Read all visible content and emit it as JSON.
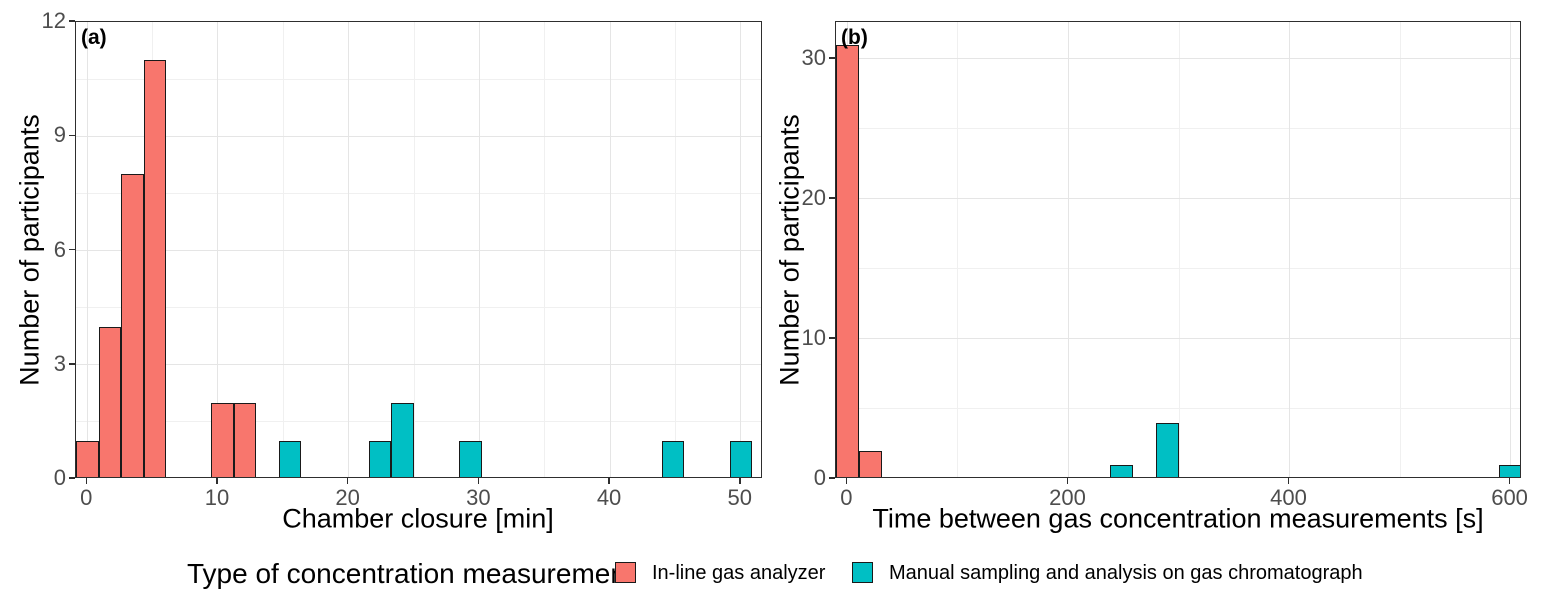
{
  "figure": {
    "background": "#FFFFFF",
    "panel_border_color": "#2E2E2E",
    "bar_outline_color": "#1A1A1A",
    "grid_major_color": "#E5E5E5",
    "grid_minor_color": "#F0F0F0",
    "tick_label_color": "#4D4D4D",
    "text_color": "#000000"
  },
  "legend": {
    "title": "Type of concentration measurement",
    "items": [
      {
        "label": "In-line gas analyzer",
        "color": "#F8766D"
      },
      {
        "label": "Manual sampling and analysis on gas chromatograph",
        "color": "#00BFC4"
      }
    ]
  },
  "chart_data": [
    {
      "type": "bar",
      "tag": "(a)",
      "xlabel": "Chamber closure [min]",
      "ylabel": "Number of participants",
      "xlim": [
        -0.862,
        51.7
      ],
      "ylim": [
        0,
        12
      ],
      "xticks": [
        0,
        10,
        20,
        30,
        40,
        50
      ],
      "xticks_minor": [
        5,
        15,
        25,
        35,
        45
      ],
      "yticks": [
        0,
        3,
        6,
        9,
        12
      ],
      "yticks_minor": [
        1.5,
        4.5,
        7.5,
        10.5
      ],
      "binwidth": 1.7241,
      "grid": true,
      "legend_position": "bottom",
      "series": [
        {
          "name": "In-line gas analyzer",
          "color": "#F8766D",
          "bars": [
            {
              "x": 0,
              "count": 1
            },
            {
              "x": 1.724,
              "count": 4
            },
            {
              "x": 3.448,
              "count": 8
            },
            {
              "x": 5.172,
              "count": 11
            },
            {
              "x": 10.345,
              "count": 2
            },
            {
              "x": 12.069,
              "count": 2
            }
          ]
        },
        {
          "name": "Manual sampling and analysis on gas chromatograph",
          "color": "#00BFC4",
          "bars": [
            {
              "x": 15.517,
              "count": 1
            },
            {
              "x": 22.414,
              "count": 1
            },
            {
              "x": 24.138,
              "count": 2
            },
            {
              "x": 29.31,
              "count": 1
            },
            {
              "x": 44.828,
              "count": 1
            },
            {
              "x": 50.0,
              "count": 1
            }
          ]
        }
      ]
    },
    {
      "type": "bar",
      "tag": "(b)",
      "xlabel": "Time between gas concentration measurements [s]",
      "ylabel": "Number of participants",
      "xlim": [
        -10.345,
        610.345
      ],
      "ylim": [
        0,
        32.64
      ],
      "xticks": [
        0,
        200,
        400,
        600
      ],
      "xticks_minor": [
        100,
        300,
        500
      ],
      "yticks": [
        0,
        10,
        20,
        30
      ],
      "yticks_minor": [
        5,
        15,
        25
      ],
      "binwidth": 20.69,
      "grid": true,
      "legend_position": "bottom",
      "series": [
        {
          "name": "In-line gas analyzer",
          "color": "#F8766D",
          "bars": [
            {
              "x": 0,
              "count": 31
            },
            {
              "x": 20.69,
              "count": 2
            }
          ]
        },
        {
          "name": "Manual sampling and analysis on gas chromatograph",
          "color": "#00BFC4",
          "bars": [
            {
              "x": 248.28,
              "count": 1
            },
            {
              "x": 289.66,
              "count": 4
            },
            {
              "x": 600,
              "count": 1
            }
          ]
        }
      ]
    }
  ]
}
